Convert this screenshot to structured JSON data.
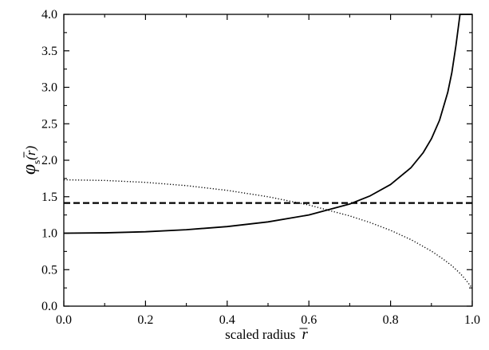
{
  "chart_data": {
    "type": "line",
    "xlabel": "scaled radius",
    "xlabel_symbol": "r",
    "ylabel_symbol": "φ",
    "ylabel_subscript": "s",
    "ylabel_arg": "(r)",
    "xlim": [
      0.0,
      1.0
    ],
    "ylim": [
      0.0,
      4.0
    ],
    "xticks": [
      "0.0",
      "0.2",
      "0.4",
      "0.6",
      "0.8",
      "1.0"
    ],
    "yticks": [
      "0.0",
      "0.5",
      "1.0",
      "1.5",
      "2.0",
      "2.5",
      "3.0",
      "3.5",
      "4.0"
    ],
    "xtick_values": [
      0.0,
      0.2,
      0.4,
      0.6,
      0.8,
      1.0
    ],
    "ytick_values": [
      0.0,
      0.5,
      1.0,
      1.5,
      2.0,
      2.5,
      3.0,
      3.5,
      4.0
    ],
    "grid": false,
    "series": [
      {
        "style": "solid",
        "x": [
          0.0,
          0.1,
          0.2,
          0.3,
          0.4,
          0.5,
          0.6,
          0.7,
          0.75,
          0.8,
          0.85,
          0.88,
          0.9,
          0.92,
          0.94,
          0.95,
          0.96,
          0.97,
          0.975,
          0.98,
          0.985,
          0.99,
          0.995,
          1.0
        ],
        "y": [
          1.0,
          1.005,
          1.02,
          1.048,
          1.091,
          1.155,
          1.25,
          1.4,
          1.512,
          1.667,
          1.898,
          2.105,
          2.294,
          2.55,
          2.93,
          3.2,
          3.57,
          4.0,
          4.0,
          4.0,
          4.0,
          4.0,
          4.0,
          4.0
        ]
      },
      {
        "style": "dotted",
        "x": [
          0.0,
          0.1,
          0.2,
          0.3,
          0.4,
          0.5,
          0.6,
          0.7,
          0.75,
          0.8,
          0.85,
          0.9,
          0.93,
          0.95,
          0.97,
          0.98,
          0.99,
          0.995,
          1.0
        ],
        "y": [
          1.732,
          1.723,
          1.697,
          1.652,
          1.587,
          1.5,
          1.386,
          1.237,
          1.146,
          1.039,
          0.912,
          0.755,
          0.64,
          0.555,
          0.45,
          0.388,
          0.32,
          0.28,
          0.25
        ]
      },
      {
        "style": "dashed",
        "x": [
          0.0,
          1.0
        ],
        "y": [
          1.414,
          1.414
        ]
      }
    ]
  }
}
